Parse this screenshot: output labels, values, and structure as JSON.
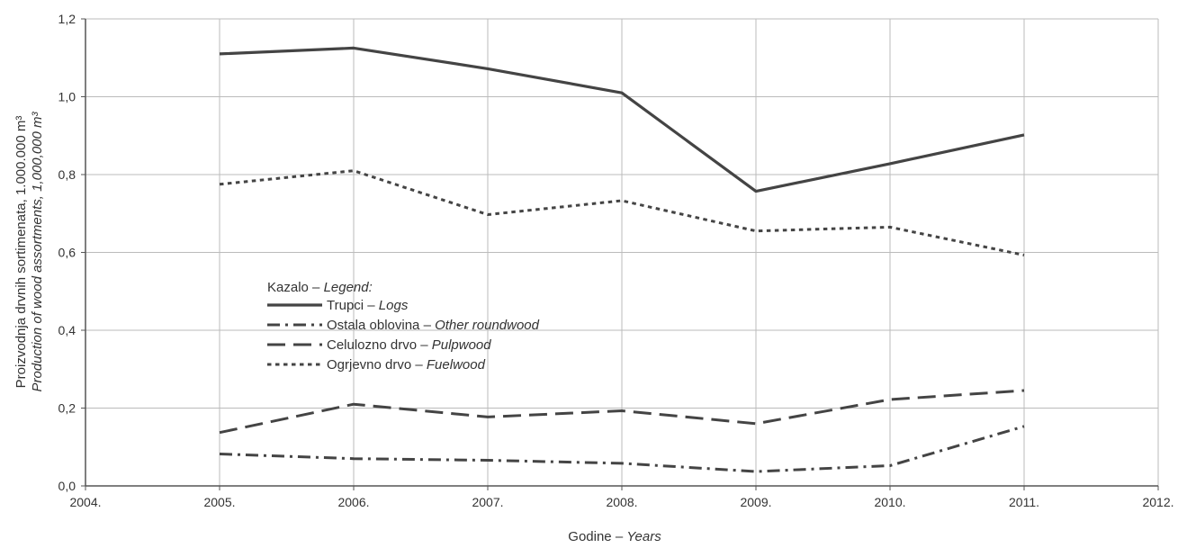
{
  "chart_data": {
    "type": "line",
    "x": [
      2005,
      2006,
      2007,
      2008,
      2009,
      2010,
      2011
    ],
    "xlim": [
      2004,
      2012
    ],
    "ylim": [
      0,
      1.2
    ],
    "x_ticks": [
      "2004.",
      "2005.",
      "2006.",
      "2007.",
      "2008.",
      "2009.",
      "2010.",
      "2011.",
      "2012."
    ],
    "y_ticks": [
      "0,0",
      "0,2",
      "0,4",
      "0,6",
      "0,8",
      "1,0",
      "1,2"
    ],
    "xlabel": {
      "main": "Godine",
      "sep": "–",
      "italic": "Years"
    },
    "ylabel": {
      "line1": "Proizvodnja drvnih sortimenata, 1.000.000 m³",
      "line2": "Production of wood assortments, 1,000,000 m³"
    },
    "grid": true,
    "legend": {
      "position": "center-left",
      "title_main": "Kazalo",
      "title_sep": "–",
      "title_italic": "Legend:"
    },
    "series": [
      {
        "name": "Trupci",
        "name_italic": "Logs",
        "style": "solid",
        "values": [
          1.11,
          1.125,
          1.072,
          1.01,
          0.757,
          0.828,
          0.902
        ]
      },
      {
        "name": "Ostala oblovina",
        "name_italic": "Other roundwood",
        "style": "dashdot",
        "values": [
          0.082,
          0.07,
          0.066,
          0.058,
          0.037,
          0.052,
          0.153
        ]
      },
      {
        "name": "Celulozno drvo",
        "name_italic": "Pulpwood",
        "style": "dashed",
        "values": [
          0.137,
          0.21,
          0.177,
          0.193,
          0.16,
          0.222,
          0.245
        ]
      },
      {
        "name": "Ogrjevno drvo",
        "name_italic": "Fuelwood",
        "style": "dotted",
        "values": [
          0.775,
          0.81,
          0.697,
          0.733,
          0.655,
          0.665,
          0.593
        ]
      }
    ],
    "line_color": "#444444",
    "grid_color": "#bbbbbb",
    "axis_color": "#555555"
  }
}
